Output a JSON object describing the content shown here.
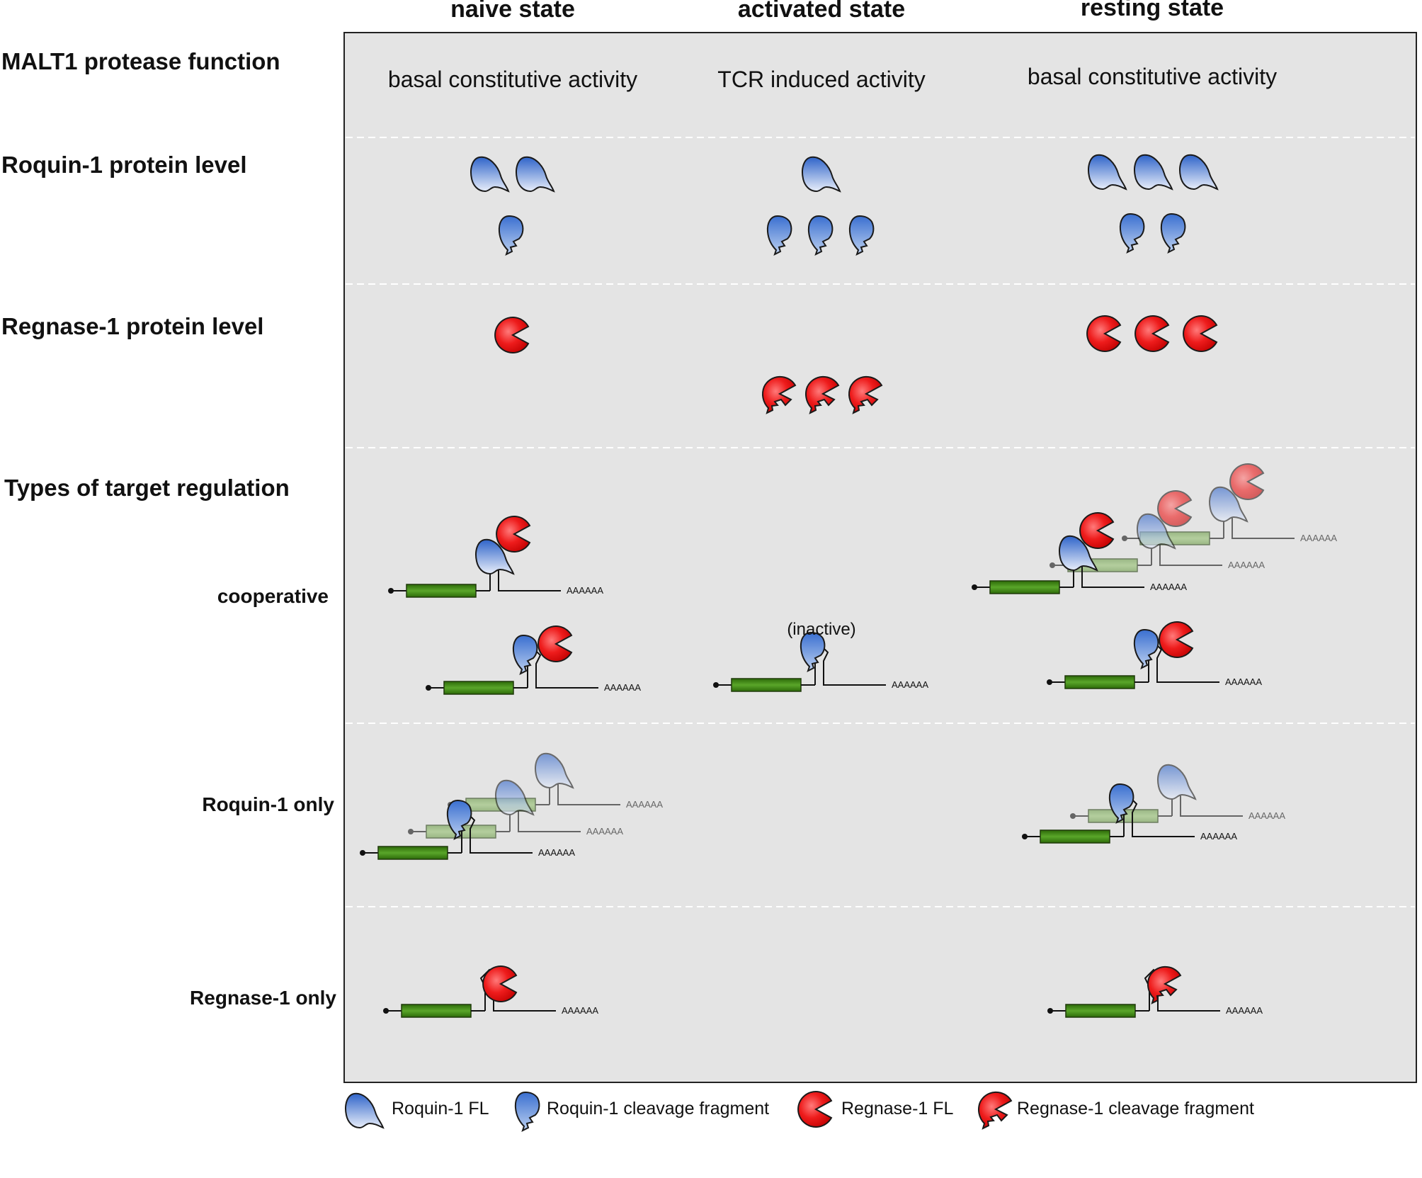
{
  "columns": {
    "naive": "naive state",
    "activated": "activated state",
    "resting": "resting state"
  },
  "rows": {
    "malt1": "MALT1 protease function",
    "roquin": "Roquin-1 protein level",
    "regnase": "Regnase-1 protein level",
    "types": "Types of target regulation"
  },
  "regulation_types": {
    "cooperative": "cooperative",
    "roquin_only": "Roquin-1 only",
    "regnase_only": "Regnase-1 only"
  },
  "activity": {
    "naive": "basal constitutive activity",
    "activated": "TCR induced activity",
    "resting": "basal constitutive activity"
  },
  "inactive_note": "(inactive)",
  "polyA": "AAAAAA",
  "legend": {
    "roquin_fl": "Roquin-1 FL",
    "roquin_frag": "Roquin-1 cleavage fragment",
    "regnase_fl": "Regnase-1 FL",
    "regnase_frag": "Regnase-1 cleavage fragment"
  },
  "colors": {
    "panel": "#e4e4e4",
    "roquin_blue": "#4a7fd4",
    "regnase_red": "#ee1c1c",
    "cds_green": "#3f8a12"
  }
}
